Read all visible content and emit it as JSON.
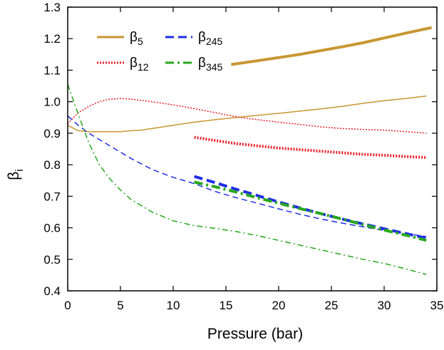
{
  "chart_data": {
    "type": "line",
    "title": "",
    "xlabel": "Pressure (bar)",
    "ylabel_main": "β",
    "ylabel_sub": "i",
    "xlim": [
      0,
      35
    ],
    "ylim": [
      0.4,
      1.3
    ],
    "xticks": [
      "0",
      "5",
      "10",
      "15",
      "20",
      "25",
      "30",
      "35"
    ],
    "xtick_values": [
      0,
      5,
      10,
      15,
      20,
      25,
      30,
      35
    ],
    "yticks": [
      "0.4",
      "0.5",
      "0.6",
      "0.7",
      "0.8",
      "0.9",
      "1.0",
      "1.1",
      "1.2",
      "1.3"
    ],
    "ytick_values": [
      0.4,
      0.5,
      0.6,
      0.7,
      0.8,
      0.9,
      1.0,
      1.1,
      1.2,
      1.3
    ],
    "grid": false,
    "legend_position": "top-left",
    "legend": [
      {
        "main": "β",
        "sub": "5",
        "color": "#c89632",
        "style": "solid"
      },
      {
        "main": "β",
        "sub": "245",
        "color": "#1f2ee6",
        "style": "dashed"
      },
      {
        "main": "β",
        "sub": "12",
        "color": "#e8202a",
        "style": "dotted"
      },
      {
        "main": "β",
        "sub": "345",
        "color": "#27a81c",
        "style": "dashdot"
      }
    ],
    "series": [
      {
        "name": "β5 thin",
        "color": "#c89632",
        "style": "solid",
        "width": 1.5,
        "x": [
          0,
          1,
          2,
          3,
          4,
          5,
          6,
          7,
          8,
          10,
          12,
          14,
          16,
          18,
          20,
          22,
          24,
          26,
          28,
          30,
          32,
          34
        ],
        "y": [
          0.925,
          0.908,
          0.905,
          0.905,
          0.905,
          0.905,
          0.908,
          0.91,
          0.915,
          0.925,
          0.935,
          0.943,
          0.95,
          0.957,
          0.963,
          0.97,
          0.977,
          0.985,
          0.995,
          1.003,
          1.01,
          1.018
        ]
      },
      {
        "name": "β5 thick",
        "color": "#c89632",
        "style": "solid",
        "width": 4,
        "x": [
          15.5,
          18,
          20,
          22,
          24,
          26,
          28,
          30,
          32,
          34.5
        ],
        "y": [
          1.118,
          1.13,
          1.14,
          1.15,
          1.162,
          1.174,
          1.187,
          1.202,
          1.217,
          1.235
        ]
      },
      {
        "name": "β12 thin",
        "color": "#e8202a",
        "style": "dotted",
        "width": 1.5,
        "x": [
          0,
          1,
          2,
          3,
          4,
          5,
          6,
          8,
          10,
          12,
          14,
          16,
          18,
          20,
          22,
          24,
          26,
          28,
          30,
          32,
          34
        ],
        "y": [
          0.93,
          0.965,
          0.985,
          1.0,
          1.008,
          1.01,
          1.008,
          1.0,
          0.99,
          0.978,
          0.965,
          0.952,
          0.943,
          0.935,
          0.928,
          0.92,
          0.915,
          0.912,
          0.91,
          0.905,
          0.9
        ]
      },
      {
        "name": "β12 thick",
        "color": "#e8202a",
        "style": "dotted",
        "width": 4,
        "x": [
          12,
          14,
          16,
          18,
          20,
          22,
          24,
          26,
          28,
          30,
          32,
          34
        ],
        "y": [
          0.887,
          0.877,
          0.867,
          0.86,
          0.853,
          0.848,
          0.843,
          0.838,
          0.833,
          0.83,
          0.826,
          0.823
        ]
      },
      {
        "name": "β245 thin",
        "color": "#1f2ee6",
        "style": "dashed",
        "width": 1.5,
        "x": [
          0,
          1,
          2,
          4,
          6,
          8,
          10,
          12,
          14,
          16,
          18,
          20,
          22,
          24,
          26,
          28,
          30,
          32,
          34
        ],
        "y": [
          0.955,
          0.925,
          0.9,
          0.86,
          0.82,
          0.785,
          0.76,
          0.74,
          0.715,
          0.695,
          0.678,
          0.66,
          0.643,
          0.628,
          0.615,
          0.603,
          0.592,
          0.582,
          0.572
        ]
      },
      {
        "name": "β245 thick",
        "color": "#1f2ee6",
        "style": "dashed",
        "width": 4,
        "x": [
          12,
          14,
          16,
          18,
          20,
          22,
          24,
          26,
          28,
          30,
          32,
          34
        ],
        "y": [
          0.763,
          0.743,
          0.722,
          0.702,
          0.682,
          0.663,
          0.645,
          0.628,
          0.612,
          0.597,
          0.582,
          0.567
        ]
      },
      {
        "name": "β345 thin",
        "color": "#27a81c",
        "style": "dashdot",
        "width": 1.5,
        "x": [
          0,
          1,
          2,
          3,
          4,
          5,
          6,
          8,
          10,
          12,
          14,
          16,
          18,
          20,
          22,
          24,
          26,
          28,
          30,
          32,
          34
        ],
        "y": [
          1.055,
          0.96,
          0.87,
          0.8,
          0.755,
          0.72,
          0.69,
          0.65,
          0.622,
          0.607,
          0.598,
          0.588,
          0.575,
          0.56,
          0.545,
          0.53,
          0.515,
          0.5,
          0.487,
          0.47,
          0.452
        ]
      },
      {
        "name": "β345 thick",
        "color": "#27a81c",
        "style": "dashdot",
        "width": 4,
        "x": [
          12,
          14,
          16,
          18,
          20,
          22,
          24,
          26,
          28,
          30,
          32,
          34
        ],
        "y": [
          0.745,
          0.73,
          0.713,
          0.695,
          0.678,
          0.661,
          0.645,
          0.628,
          0.61,
          0.593,
          0.577,
          0.56
        ]
      }
    ]
  }
}
